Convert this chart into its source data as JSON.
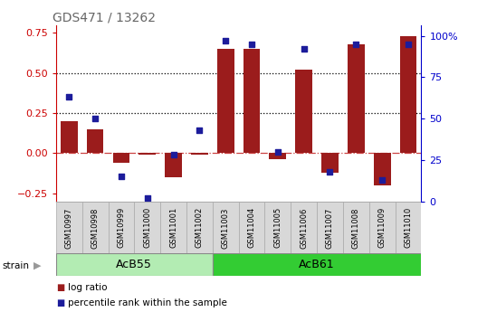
{
  "title": "GDS471 / 13262",
  "samples": [
    "GSM10997",
    "GSM10998",
    "GSM10999",
    "GSM11000",
    "GSM11001",
    "GSM11002",
    "GSM11003",
    "GSM11004",
    "GSM11005",
    "GSM11006",
    "GSM11007",
    "GSM11008",
    "GSM11009",
    "GSM11010"
  ],
  "log_ratio": [
    0.2,
    0.15,
    -0.06,
    -0.01,
    -0.15,
    -0.01,
    0.65,
    0.65,
    -0.04,
    0.52,
    -0.12,
    0.68,
    -0.2,
    0.73
  ],
  "percentile": [
    63,
    50,
    15,
    2,
    28,
    43,
    97,
    95,
    30,
    92,
    18,
    95,
    13,
    95
  ],
  "strains": [
    {
      "label": "AcB55",
      "start": 0,
      "end": 6,
      "color": "#b3ecb3"
    },
    {
      "label": "AcB61",
      "start": 6,
      "end": 14,
      "color": "#33cc33"
    }
  ],
  "bar_color": "#9b1c1c",
  "dot_color": "#1c1c9b",
  "left_ylim": [
    -0.3,
    0.8
  ],
  "left_yticks": [
    -0.25,
    0.0,
    0.25,
    0.5,
    0.75
  ],
  "right_ylim": [
    0,
    106.67
  ],
  "right_yticks": [
    0,
    25,
    50,
    75,
    100
  ],
  "hlines": [
    0.25,
    0.5
  ],
  "zero_line": 0.0,
  "left_tick_color": "#cc0000",
  "right_tick_color": "#0000cc",
  "title_color": "#666666"
}
